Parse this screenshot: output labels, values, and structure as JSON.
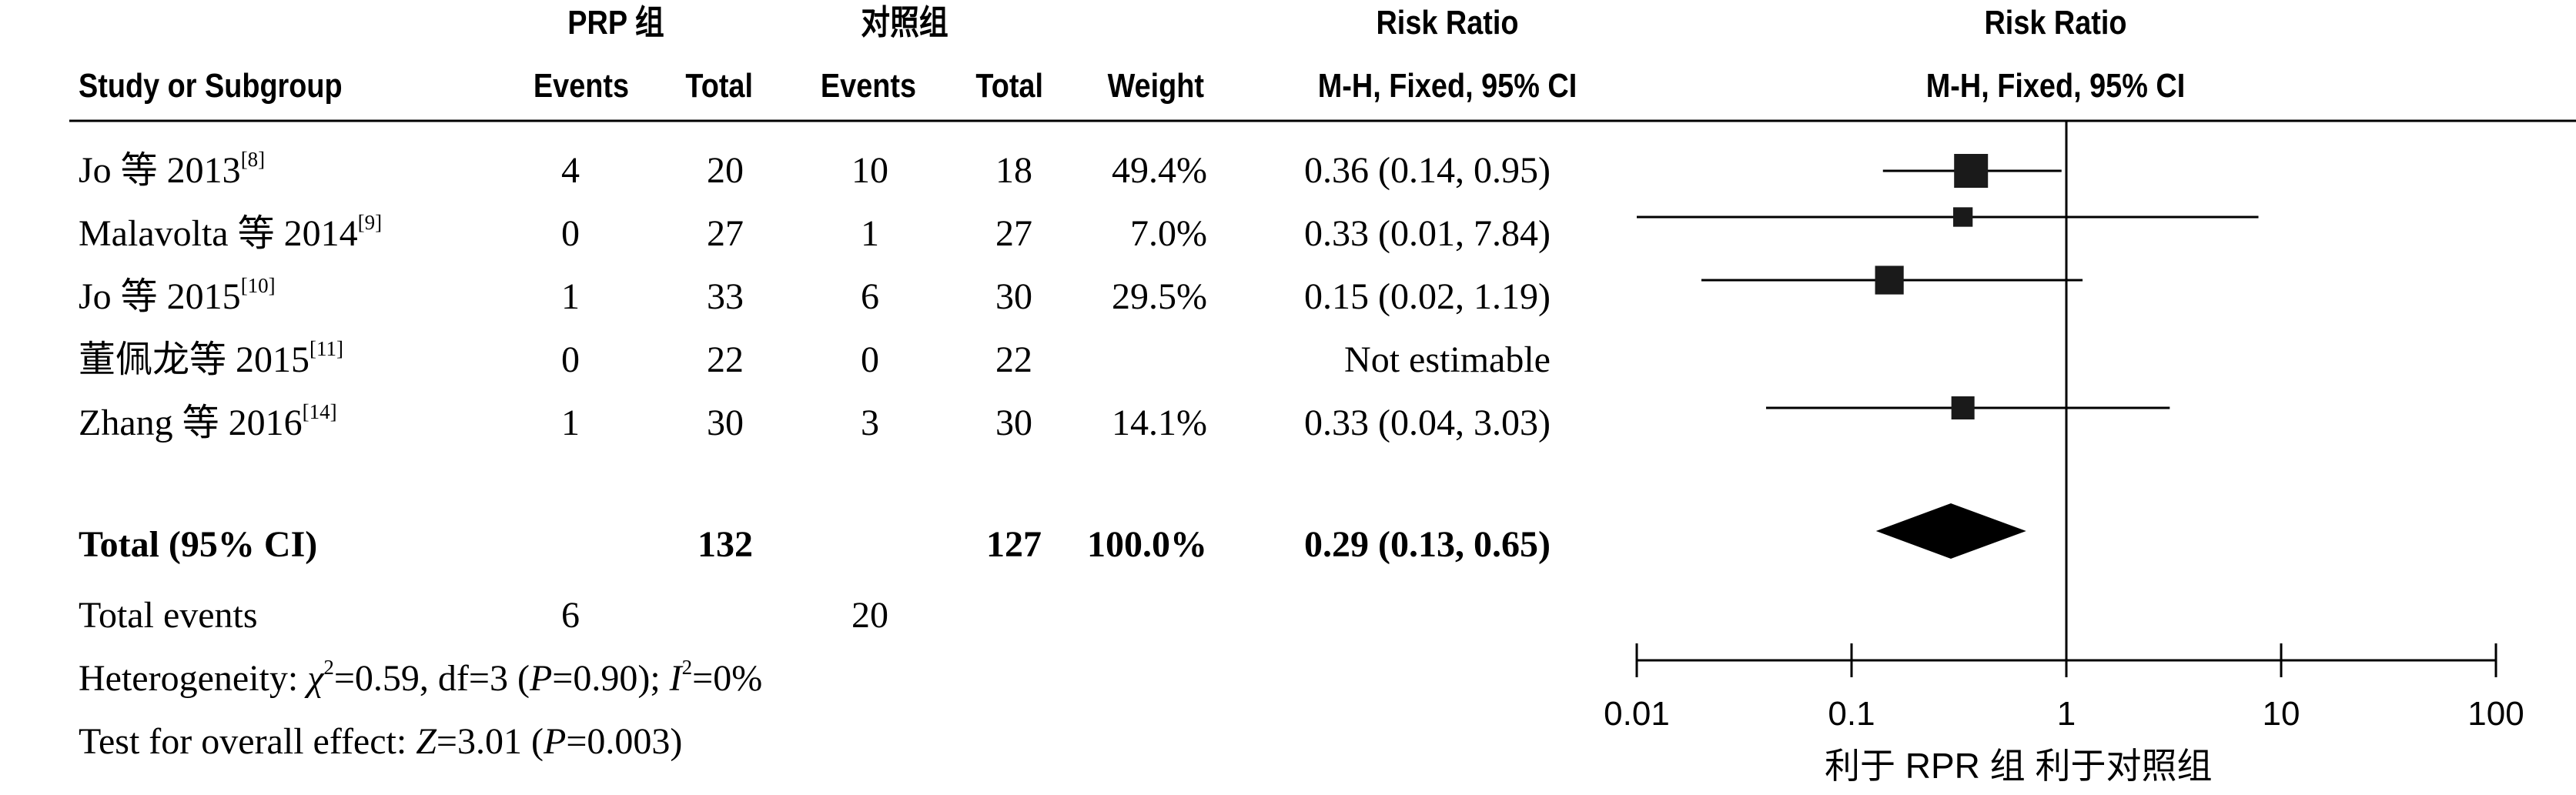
{
  "header": {
    "group1": "PRP 组",
    "group2": "对照组",
    "rr_title_table": "Risk Ratio",
    "rr_title_plot": "Risk Ratio",
    "study_col": "Study or Subgroup",
    "events1": "Events",
    "total1": "Total",
    "events2": "Events",
    "total2": "Total",
    "weight": "Weight",
    "method_table": "M-H, Fixed, 95% CI",
    "method_plot": "M-H, Fixed, 95% CI"
  },
  "rows": [
    {
      "name": "Jo 等 2013",
      "ref": "[8]",
      "e1": "4",
      "t1": "20",
      "e2": "10",
      "t2": "18",
      "weight": "49.4%",
      "ci": "0.36 (0.14, 0.95)"
    },
    {
      "name": "Malavolta 等 2014",
      "ref": "[9]",
      "e1": "0",
      "t1": "27",
      "e2": "1",
      "t2": "27",
      "weight": "7.0%",
      "ci": "0.33 (0.01, 7.84)"
    },
    {
      "name": "Jo 等 2015",
      "ref": "[10]",
      "e1": "1",
      "t1": "33",
      "e2": "6",
      "t2": "30",
      "weight": "29.5%",
      "ci": "0.15 (0.02, 1.19)"
    },
    {
      "name": "董佩龙等 2015",
      "ref": "[11]",
      "e1": "0",
      "t1": "22",
      "e2": "0",
      "t2": "22",
      "weight": "",
      "ci": "Not estimable"
    },
    {
      "name": "Zhang 等 2016",
      "ref": "[14]",
      "e1": "1",
      "t1": "30",
      "e2": "3",
      "t2": "30",
      "weight": "14.1%",
      "ci": "0.33 (0.04, 3.03)"
    }
  ],
  "total": {
    "label": "Total (95% CI)",
    "t1": "132",
    "t2": "127",
    "weight": "100.0%",
    "ci": "0.29 (0.13, 0.65)"
  },
  "events": {
    "label": "Total events",
    "e1": "6",
    "e2": "20"
  },
  "heterogeneity": {
    "prefix": "Heterogeneity: ",
    "chi": "χ",
    "chi_sup": "2",
    "mid": "=0.59, df=3 (",
    "p": "P",
    "pval": "=0.90); ",
    "i": "I",
    "i_sup": "2",
    "ival": "=0%"
  },
  "overall": {
    "prefix": "Test for overall effect: ",
    "z": "Z",
    "zval": "=3.01 (",
    "p": "P",
    "pval": "=0.003)"
  },
  "axis_note": "利于 RPR 组   利于对照组",
  "chart_data": {
    "type": "forest",
    "x_scale": "log",
    "xlim": [
      0.01,
      100
    ],
    "ticks": [
      0.01,
      0.1,
      1,
      10,
      100
    ],
    "tick_labels": [
      "0.01",
      "0.1",
      "1",
      "10",
      "100"
    ],
    "reference_line": 1,
    "studies": [
      {
        "label": "Jo 等 2013",
        "rr": 0.36,
        "lo": 0.14,
        "hi": 0.95,
        "weight": 49.4
      },
      {
        "label": "Malavolta 等 2014",
        "rr": 0.33,
        "lo": 0.01,
        "hi": 7.84,
        "weight": 7.0
      },
      {
        "label": "Jo 等 2015",
        "rr": 0.15,
        "lo": 0.02,
        "hi": 1.19,
        "weight": 29.5
      },
      {
        "label": "董佩龙等 2015",
        "rr": null,
        "lo": null,
        "hi": null,
        "weight": null
      },
      {
        "label": "Zhang 等 2016",
        "rr": 0.33,
        "lo": 0.04,
        "hi": 3.03,
        "weight": 14.1
      }
    ],
    "pooled": {
      "rr": 0.29,
      "lo": 0.13,
      "hi": 0.65
    }
  }
}
